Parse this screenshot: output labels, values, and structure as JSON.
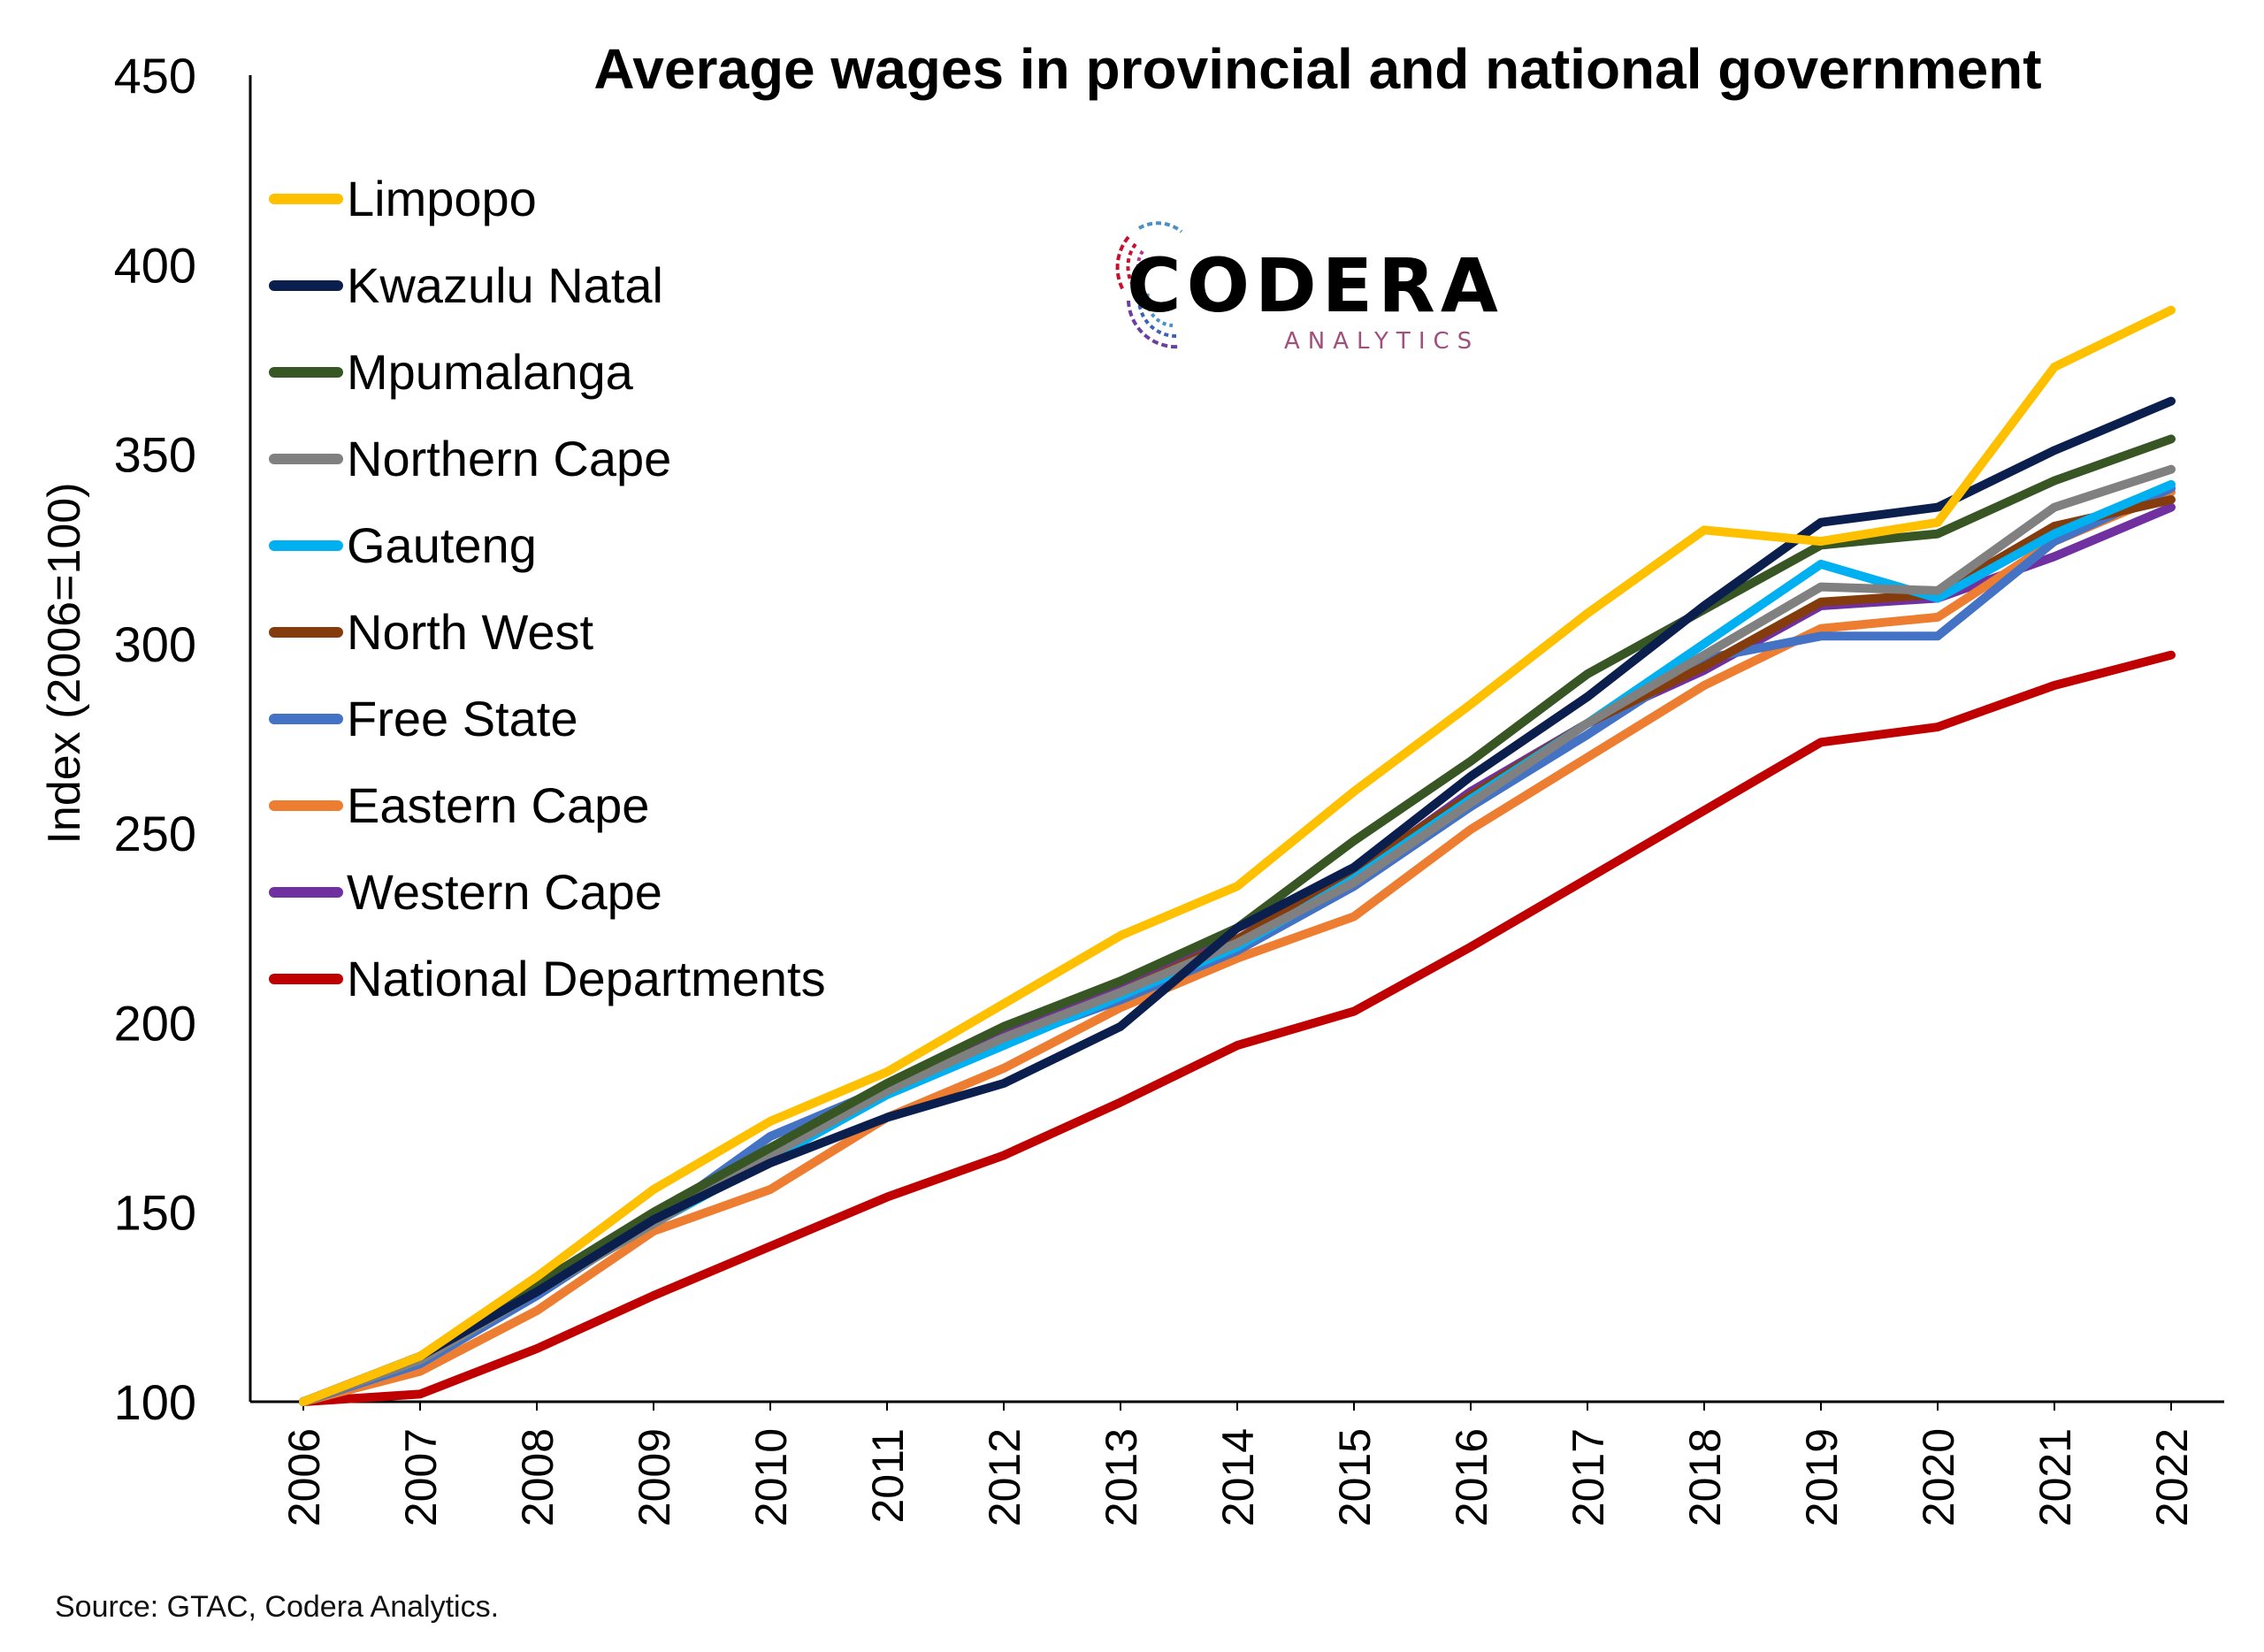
{
  "chart_data": {
    "type": "line",
    "title": "Average wages in provincial and national government",
    "ylabel": "Index (2006=100)",
    "xlabel": "",
    "ylim": [
      100,
      450
    ],
    "yticks": [
      100,
      150,
      200,
      250,
      300,
      350,
      400,
      450
    ],
    "grid": false,
    "legend_position": "top-left",
    "categories": [
      "2006",
      "2007",
      "2008",
      "2009",
      "2010",
      "2011",
      "2012",
      "2013",
      "2014",
      "2015",
      "2016",
      "2017",
      "2018",
      "2019",
      "2020",
      "2021",
      "2022"
    ],
    "series": [
      {
        "name": "Limpopo",
        "color": "#FFC000",
        "values": [
          100,
          112,
          133,
          156,
          174,
          187,
          205,
          223,
          236,
          261,
          284,
          308,
          330,
          327,
          332,
          373,
          388
        ]
      },
      {
        "name": "Kwazulu Natal",
        "color": "#0B1F4F",
        "values": [
          100,
          112,
          129,
          148,
          163,
          175,
          184,
          199,
          225,
          241,
          265,
          286,
          310,
          332,
          336,
          351,
          364
        ]
      },
      {
        "name": "Mpumalanga",
        "color": "#375623",
        "values": [
          100,
          112,
          131,
          150,
          167,
          184,
          199,
          211,
          225,
          248,
          269,
          292,
          309,
          326,
          329,
          343,
          354
        ]
      },
      {
        "name": "Northern Cape",
        "color": "#808080",
        "values": [
          100,
          111,
          129,
          147,
          165,
          182,
          196,
          208,
          221,
          237,
          258,
          279,
          297,
          315,
          314,
          336,
          346
        ]
      },
      {
        "name": "Gauteng",
        "color": "#00B0F0",
        "values": [
          100,
          111,
          129,
          147,
          164,
          181,
          194,
          207,
          220,
          238,
          259,
          279,
          300,
          321,
          312,
          329,
          342
        ]
      },
      {
        "name": "North West",
        "color": "#843C0C",
        "values": [
          100,
          111,
          129,
          148,
          166,
          182,
          196,
          208,
          222,
          240,
          260,
          279,
          294,
          311,
          313,
          331,
          338
        ]
      },
      {
        "name": "Free State",
        "color": "#4472C4",
        "values": [
          100,
          110,
          128,
          148,
          170,
          183,
          195,
          206,
          219,
          236,
          257,
          276,
          296,
          302,
          302,
          327,
          341
        ]
      },
      {
        "name": "Eastern Cape",
        "color": "#ED7D31",
        "values": [
          100,
          108,
          124,
          145,
          156,
          175,
          188,
          204,
          217,
          228,
          251,
          270,
          289,
          304,
          307,
          327,
          340
        ]
      },
      {
        "name": "Western Cape",
        "color": "#7030A0",
        "values": [
          100,
          111,
          130,
          148,
          166,
          182,
          197,
          209,
          225,
          239,
          261,
          279,
          293,
          310,
          312,
          323,
          336
        ]
      },
      {
        "name": "National Departments",
        "color": "#C00000",
        "values": [
          100,
          102,
          114,
          128,
          141,
          154,
          165,
          179,
          194,
          203,
          220,
          238,
          256,
          274,
          278,
          289,
          297
        ]
      }
    ]
  },
  "logo": {
    "main": "CODERA",
    "sub": "ANALYTICS"
  },
  "source": "Source: GTAC, Codera Analytics."
}
